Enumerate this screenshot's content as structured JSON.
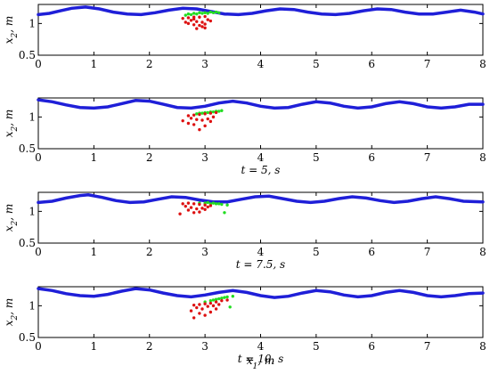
{
  "chart_data": [
    {
      "type": "scatter",
      "time_label": "",
      "ylabel": "x_2, m",
      "xlabel": "",
      "xlim": [
        0,
        8
      ],
      "ylim": [
        0.5,
        1.3
      ],
      "xticks": [
        "0",
        "1",
        "2",
        "3",
        "4",
        "5",
        "6",
        "7",
        "8"
      ],
      "yticks": [
        "0.5",
        "1"
      ],
      "series": [
        {
          "color": "#1f1fd8",
          "style": "line",
          "x": [
            0,
            0.2,
            0.4,
            0.6,
            0.85,
            1.1,
            1.35,
            1.6,
            1.85,
            2.1,
            2.35,
            2.6,
            2.85,
            3.1,
            3.35,
            3.6,
            3.85,
            4.1,
            4.35,
            4.6,
            4.85,
            5.1,
            5.35,
            5.6,
            5.85,
            6.1,
            6.35,
            6.6,
            6.85,
            7.1,
            7.35,
            7.6,
            7.85,
            8.0
          ],
          "y": [
            1.14,
            1.16,
            1.2,
            1.24,
            1.26,
            1.23,
            1.18,
            1.15,
            1.14,
            1.17,
            1.21,
            1.24,
            1.23,
            1.19,
            1.15,
            1.14,
            1.16,
            1.2,
            1.23,
            1.22,
            1.18,
            1.15,
            1.14,
            1.16,
            1.2,
            1.23,
            1.22,
            1.18,
            1.15,
            1.15,
            1.18,
            1.21,
            1.18,
            1.15
          ]
        },
        {
          "color": "#22dd22",
          "style": "points",
          "x": [
            2.7,
            2.8,
            2.9,
            3.0,
            3.1,
            3.2,
            2.75,
            2.85,
            2.95,
            3.05,
            3.15,
            2.65,
            3.25
          ],
          "y": [
            1.15,
            1.16,
            1.17,
            1.17,
            1.18,
            1.18,
            1.14,
            1.15,
            1.16,
            1.16,
            1.17,
            1.13,
            1.17
          ]
        },
        {
          "color": "#dd1111",
          "style": "points",
          "x": [
            2.6,
            2.7,
            2.8,
            2.9,
            3.0,
            2.75,
            2.85,
            2.95,
            3.05,
            2.7,
            2.8,
            2.9,
            3.0,
            2.65,
            2.95,
            3.1,
            2.85,
            3.0,
            2.8
          ],
          "y": [
            1.08,
            1.09,
            1.1,
            1.1,
            1.11,
            1.05,
            1.03,
            1.02,
            1.06,
            1.0,
            0.98,
            0.97,
            0.99,
            1.02,
            0.95,
            1.04,
            0.92,
            0.93,
            1.07
          ]
        }
      ]
    },
    {
      "type": "scatter",
      "time_label": "t = 5,  s",
      "ylabel": "x_2, m",
      "xlabel": "",
      "xlim": [
        0,
        8
      ],
      "ylim": [
        0.5,
        1.3
      ],
      "xticks": [
        "0",
        "1",
        "2",
        "3",
        "4",
        "5",
        "6",
        "7",
        "8"
      ],
      "yticks": [
        "0.5",
        "1"
      ],
      "series": [
        {
          "color": "#1f1fd8",
          "style": "line",
          "x": [
            0,
            0.25,
            0.5,
            0.75,
            1.0,
            1.25,
            1.5,
            1.75,
            2.0,
            2.25,
            2.5,
            2.75,
            3.0,
            3.25,
            3.5,
            3.75,
            4.0,
            4.25,
            4.5,
            4.75,
            5.0,
            5.25,
            5.5,
            5.75,
            6.0,
            6.25,
            6.5,
            6.75,
            7.0,
            7.25,
            7.5,
            7.75,
            8.0
          ],
          "y": [
            1.27,
            1.24,
            1.19,
            1.15,
            1.14,
            1.16,
            1.21,
            1.26,
            1.25,
            1.2,
            1.15,
            1.14,
            1.17,
            1.22,
            1.25,
            1.22,
            1.17,
            1.14,
            1.15,
            1.2,
            1.24,
            1.22,
            1.17,
            1.14,
            1.16,
            1.21,
            1.24,
            1.21,
            1.16,
            1.14,
            1.16,
            1.2,
            1.2
          ]
        },
        {
          "color": "#22dd22",
          "style": "points",
          "x": [
            2.9,
            3.0,
            3.1,
            3.2,
            3.3,
            2.95,
            3.05,
            3.15,
            3.25,
            2.85
          ],
          "y": [
            1.06,
            1.07,
            1.08,
            1.09,
            1.1,
            1.06,
            1.07,
            1.08,
            1.09,
            1.05
          ]
        },
        {
          "color": "#dd1111",
          "style": "points",
          "x": [
            2.7,
            2.8,
            2.9,
            3.0,
            3.1,
            3.2,
            2.75,
            2.85,
            2.95,
            3.05,
            3.15,
            2.6,
            2.7,
            2.8,
            3.0,
            2.9,
            3.1
          ],
          "y": [
            1.02,
            1.03,
            1.04,
            1.05,
            1.06,
            1.07,
            0.98,
            0.96,
            0.95,
            0.97,
            1.0,
            0.94,
            0.9,
            0.88,
            0.86,
            0.8,
            0.93
          ]
        }
      ]
    },
    {
      "type": "scatter",
      "time_label": "t = 7.5,  s",
      "ylabel": "x_2, m",
      "xlabel": "",
      "xlim": [
        0,
        8
      ],
      "ylim": [
        0.5,
        1.3
      ],
      "xticks": [
        "0",
        "1",
        "2",
        "3",
        "4",
        "5",
        "6",
        "7",
        "8"
      ],
      "yticks": [
        "0.5",
        "1"
      ],
      "series": [
        {
          "color": "#1f1fd8",
          "style": "line",
          "x": [
            0,
            0.25,
            0.5,
            0.75,
            0.9,
            1.15,
            1.4,
            1.65,
            1.9,
            2.15,
            2.4,
            2.65,
            2.9,
            3.15,
            3.4,
            3.65,
            3.9,
            4.15,
            4.4,
            4.65,
            4.9,
            5.15,
            5.4,
            5.65,
            5.9,
            6.15,
            6.4,
            6.65,
            6.9,
            7.15,
            7.4,
            7.65,
            8.0
          ],
          "y": [
            1.14,
            1.16,
            1.21,
            1.25,
            1.26,
            1.22,
            1.17,
            1.14,
            1.15,
            1.19,
            1.23,
            1.22,
            1.18,
            1.15,
            1.15,
            1.19,
            1.23,
            1.24,
            1.2,
            1.16,
            1.14,
            1.16,
            1.2,
            1.23,
            1.21,
            1.17,
            1.14,
            1.16,
            1.2,
            1.23,
            1.2,
            1.16,
            1.15
          ]
        },
        {
          "color": "#22dd22",
          "style": "points",
          "x": [
            2.9,
            3.0,
            3.1,
            3.2,
            3.3,
            3.4,
            3.05,
            3.15,
            3.25,
            3.35
          ],
          "y": [
            1.13,
            1.13,
            1.12,
            1.12,
            1.11,
            1.1,
            1.14,
            1.13,
            1.12,
            0.98
          ]
        },
        {
          "color": "#dd1111",
          "style": "points",
          "x": [
            2.6,
            2.7,
            2.8,
            2.9,
            3.0,
            3.1,
            2.75,
            2.85,
            2.95,
            3.05,
            2.7,
            2.8,
            2.9,
            2.65,
            3.0,
            2.55
          ],
          "y": [
            1.12,
            1.13,
            1.12,
            1.11,
            1.1,
            1.09,
            1.06,
            1.04,
            1.05,
            1.07,
            1.02,
            0.98,
            0.99,
            1.08,
            1.03,
            0.96
          ]
        }
      ]
    },
    {
      "type": "scatter",
      "time_label": "t = 10,  s",
      "ylabel": "x_2, m",
      "xlabel": "x_1, m",
      "xlim": [
        0,
        8
      ],
      "ylim": [
        0.5,
        1.3
      ],
      "xticks": [
        "0",
        "1",
        "2",
        "3",
        "4",
        "5",
        "6",
        "7",
        "8"
      ],
      "yticks": [
        "0.5",
        "1"
      ],
      "series": [
        {
          "color": "#1f1fd8",
          "style": "line",
          "x": [
            0,
            0.25,
            0.5,
            0.75,
            1.0,
            1.25,
            1.5,
            1.75,
            2.0,
            2.25,
            2.5,
            2.75,
            3.0,
            3.25,
            3.5,
            3.75,
            4.0,
            4.25,
            4.5,
            4.75,
            5.0,
            5.25,
            5.5,
            5.75,
            6.0,
            6.25,
            6.5,
            6.75,
            7.0,
            7.25,
            7.5,
            7.75,
            8.0
          ],
          "y": [
            1.27,
            1.24,
            1.19,
            1.16,
            1.15,
            1.18,
            1.23,
            1.27,
            1.25,
            1.2,
            1.16,
            1.14,
            1.17,
            1.21,
            1.24,
            1.21,
            1.16,
            1.13,
            1.15,
            1.2,
            1.24,
            1.22,
            1.17,
            1.14,
            1.16,
            1.21,
            1.24,
            1.21,
            1.16,
            1.14,
            1.16,
            1.19,
            1.2
          ]
        },
        {
          "color": "#22dd22",
          "style": "points",
          "x": [
            3.0,
            3.1,
            3.2,
            3.3,
            3.4,
            3.5,
            3.15,
            3.25,
            3.35,
            3.45
          ],
          "y": [
            1.06,
            1.08,
            1.1,
            1.12,
            1.14,
            1.15,
            1.09,
            1.11,
            1.13,
            0.98
          ]
        },
        {
          "color": "#dd1111",
          "style": "points",
          "x": [
            2.8,
            2.9,
            3.0,
            3.1,
            3.2,
            3.3,
            3.4,
            2.85,
            2.95,
            3.05,
            3.15,
            3.25,
            2.75,
            2.9,
            3.0,
            3.1,
            2.8,
            3.2
          ],
          "y": [
            1.01,
            1.02,
            1.03,
            1.04,
            1.06,
            1.08,
            1.09,
            0.97,
            0.95,
            0.99,
            1.0,
            1.02,
            0.92,
            0.88,
            0.85,
            0.9,
            0.81,
            0.95
          ]
        }
      ]
    }
  ]
}
